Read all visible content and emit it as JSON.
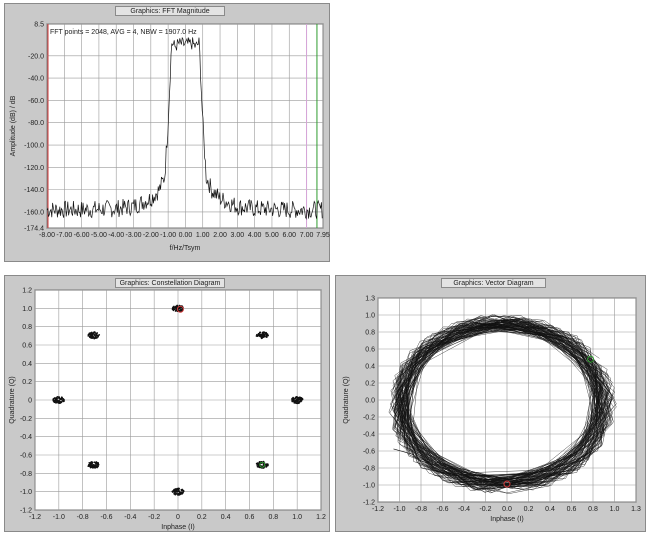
{
  "windows": {
    "fft": {
      "title": "Graphics: FFT Magnitude"
    },
    "constellation": {
      "title": "Graphics: Constellation Diagram"
    },
    "vector": {
      "title": "Graphics: Vector Diagram"
    }
  },
  "colors": {
    "plot_bg": "#ffffff",
    "frame_bg": "#c9c9c9",
    "grid": "#9a9a9a",
    "trace": "#111111",
    "marker_red": "#d33a3a",
    "marker_green": "#2c9b2c",
    "marker_pink": "#d6a3d9"
  },
  "chart_data": [
    {
      "type": "line",
      "title": "Graphics: FFT Magnitude",
      "annotation": "FFT points = 2048, AVG = 4, NBW = 1907.0 Hz",
      "xlabel": "f/Hz/Tsym",
      "ylabel": "Amplitude (dB) / dB",
      "xlim": [
        -8.0,
        7.95
      ],
      "ylim": [
        -174.4,
        8.5
      ],
      "x_tick_labels": [
        "-8.00",
        "-7.00",
        "-6.00",
        "-5.00",
        "-4.00",
        "-3.00",
        "-2.00",
        "-1.00",
        "0.00",
        "1.00",
        "2.00",
        "3.00",
        "4.00",
        "5.00",
        "6.00",
        "7.00",
        "7.95"
      ],
      "x_tick_values": [
        -8,
        -7,
        -6,
        -5,
        -4,
        -3,
        -2,
        -1,
        0,
        1,
        2,
        3,
        4,
        5,
        6,
        7,
        7.95
      ],
      "y_tick_labels": [
        "8.5",
        "-20.0",
        "-40.0",
        "-60.0",
        "-80.0",
        "-100.0",
        "-120.0",
        "-140.0",
        "-160.0",
        "-174.4"
      ],
      "y_tick_values": [
        8.5,
        -20,
        -40,
        -60,
        -80,
        -100,
        -120,
        -140,
        -160,
        -174.4
      ],
      "series": [
        {
          "x": [
            -8,
            -6,
            -4,
            -3,
            -2,
            -1.5,
            -1.2,
            -1.0,
            -0.8,
            -0.6,
            -0.4,
            0,
            0.4,
            0.6,
            0.8,
            1.0,
            1.2,
            1.5,
            2,
            3,
            4,
            6,
            7.95
          ],
          "y": [
            -158,
            -158,
            -157,
            -155,
            -148,
            -140,
            -128,
            -80,
            -8,
            -12,
            -9,
            -10,
            -9,
            -12,
            -8,
            -80,
            -128,
            -140,
            -148,
            -155,
            -157,
            -158,
            -158
          ]
        }
      ],
      "markers": {
        "left_x": -8.0,
        "right_pink_x": 7.0,
        "right_green_x": 7.6
      },
      "grid": true
    },
    {
      "type": "scatter",
      "title": "Graphics: Constellation Diagram",
      "xlabel": "Inphase (I)",
      "ylabel": "Quadrature (Q)",
      "xlim": [
        -1.2,
        1.2
      ],
      "ylim": [
        -1.2,
        1.2
      ],
      "x_tick_labels": [
        "-1.2",
        "-1.0",
        "-0.8",
        "-0.6",
        "-0.4",
        "-0.2",
        "0",
        "0.2",
        "0.4",
        "0.6",
        "0.8",
        "1.0",
        "1.2"
      ],
      "y_tick_labels": [
        "1.2",
        "1.0",
        "0.8",
        "0.6",
        "0.4",
        "0.2",
        "0",
        "-0.2",
        "-0.4",
        "-0.6",
        "-0.8",
        "-1.0",
        "-1.2"
      ],
      "points": [
        {
          "x": 0.0,
          "y": 1.0
        },
        {
          "x": 0.707,
          "y": 0.707
        },
        {
          "x": 1.0,
          "y": 0.0
        },
        {
          "x": 0.707,
          "y": -0.707
        },
        {
          "x": 0.0,
          "y": -1.0
        },
        {
          "x": -0.707,
          "y": -0.707
        },
        {
          "x": -1.0,
          "y": 0.0
        },
        {
          "x": -0.707,
          "y": 0.707
        }
      ],
      "grid": true
    },
    {
      "type": "line",
      "title": "Graphics: Vector Diagram",
      "xlabel": "Inphase (I)",
      "ylabel": "Quadrature (Q)",
      "xlim": [
        -1.2,
        1.3
      ],
      "ylim": [
        -1.2,
        1.3
      ],
      "x_tick_labels": [
        "-1.2",
        "-1.0",
        "-0.8",
        "-0.6",
        "-0.4",
        "-0.2",
        "0.0",
        "0.2",
        "0.4",
        "0.6",
        "0.8",
        "1.0",
        "1.3"
      ],
      "y_tick_labels": [
        "1.3",
        "1.0",
        "0.8",
        "0.6",
        "0.4",
        "0.2",
        "0.0",
        "-0.2",
        "-0.4",
        "-0.6",
        "-0.8",
        "-1.0",
        "-1.2"
      ],
      "ring_radius": 1.0,
      "grid": true
    }
  ]
}
